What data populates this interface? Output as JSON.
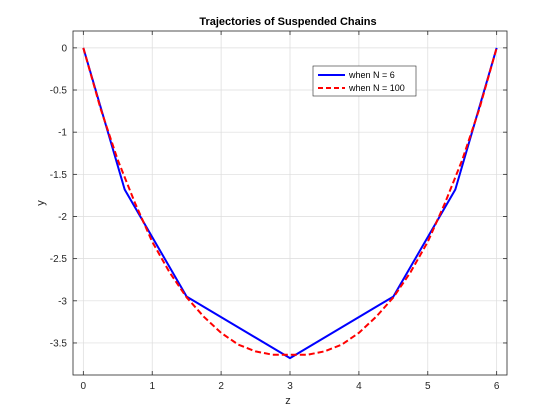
{
  "chart_data": {
    "type": "line",
    "title": "Trajectories of Suspended Chains",
    "xlabel": "z",
    "ylabel": "y",
    "xlim": [
      -0.15,
      6.15
    ],
    "ylim": [
      -3.88,
      0.2
    ],
    "xticks": [
      0,
      1,
      2,
      3,
      4,
      5,
      6
    ],
    "xtick_labels": [
      "0",
      "1",
      "2",
      "3",
      "4",
      "5",
      "6"
    ],
    "yticks": [
      0,
      -0.5,
      -1,
      -1.5,
      -2,
      -2.5,
      -3,
      -3.5
    ],
    "ytick_labels": [
      "0",
      "-0.5",
      "-1",
      "-1.5",
      "-2",
      "-2.5",
      "-3",
      "-3.5"
    ],
    "grid": true,
    "legend_position": "top-right",
    "series": [
      {
        "name": "when N = 6",
        "color": "#0000ff",
        "style": "solid",
        "x": [
          0,
          0.6,
          1.5,
          3,
          4.5,
          5.4,
          6
        ],
        "y": [
          0,
          -1.68,
          -2.95,
          -3.68,
          -2.95,
          -1.68,
          0
        ]
      },
      {
        "name": "when N = 100",
        "color": "#ff0000",
        "style": "dashed",
        "x": [
          0,
          0.25,
          0.5,
          0.75,
          1,
          1.25,
          1.5,
          1.75,
          2,
          2.25,
          2.5,
          2.75,
          3,
          3.25,
          3.5,
          3.75,
          4,
          4.25,
          4.5,
          4.75,
          5,
          5.25,
          5.5,
          5.75,
          6
        ],
        "y": [
          0,
          -0.72,
          -1.33,
          -1.84,
          -2.3,
          -2.66,
          -2.96,
          -3.19,
          -3.38,
          -3.52,
          -3.6,
          -3.64,
          -3.64,
          -3.64,
          -3.6,
          -3.52,
          -3.38,
          -3.19,
          -2.96,
          -2.66,
          -2.3,
          -1.84,
          -1.33,
          -0.72,
          0
        ]
      }
    ]
  }
}
